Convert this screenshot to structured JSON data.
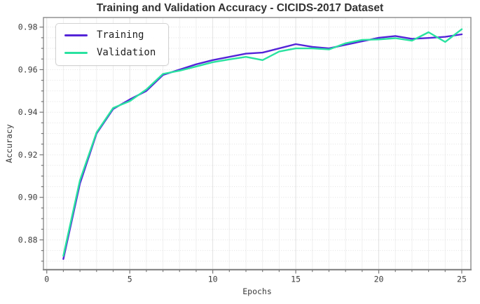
{
  "chart_data": {
    "type": "line",
    "title": "Training and Validation Accuracy - CICIDS-2017 Dataset",
    "xlabel": "Epochs",
    "ylabel": "Accuracy",
    "x": [
      1,
      2,
      3,
      4,
      5,
      6,
      7,
      8,
      9,
      10,
      11,
      12,
      13,
      14,
      15,
      16,
      17,
      18,
      19,
      20,
      21,
      22,
      23,
      24,
      25
    ],
    "series": [
      {
        "name": "Training",
        "color": "#5424d8",
        "values": [
          0.871,
          0.9065,
          0.93,
          0.9415,
          0.946,
          0.95,
          0.9575,
          0.96,
          0.9625,
          0.9645,
          0.966,
          0.9675,
          0.968,
          0.97,
          0.972,
          0.9707,
          0.97,
          0.9717,
          0.9733,
          0.975,
          0.9758,
          0.9745,
          0.9749,
          0.9754,
          0.9766
        ]
      },
      {
        "name": "Validation",
        "color": "#29e2a0",
        "values": [
          0.8725,
          0.908,
          0.9305,
          0.942,
          0.9452,
          0.9507,
          0.958,
          0.9595,
          0.9615,
          0.9635,
          0.9648,
          0.966,
          0.9645,
          0.9685,
          0.97,
          0.97,
          0.9695,
          0.9724,
          0.974,
          0.9742,
          0.9748,
          0.9736,
          0.9776,
          0.973,
          0.979
        ]
      }
    ],
    "xlim": [
      -0.2,
      25.55
    ],
    "ylim": [
      0.866,
      0.9845
    ],
    "x_major_ticks": [
      0,
      5,
      10,
      15,
      20,
      25
    ],
    "y_major_ticks": [
      0.88,
      0.9,
      0.92,
      0.94,
      0.96,
      0.98
    ],
    "x_minor_step": 1,
    "y_minor_step": 0.005,
    "grid": "on",
    "legend_position": "upper left",
    "colors": {
      "spine": "#8a8a8a",
      "grid_major": "#e2e2e2",
      "grid_minor": "#efefef",
      "tick": "#777777",
      "text": "#3b3b3b"
    }
  }
}
